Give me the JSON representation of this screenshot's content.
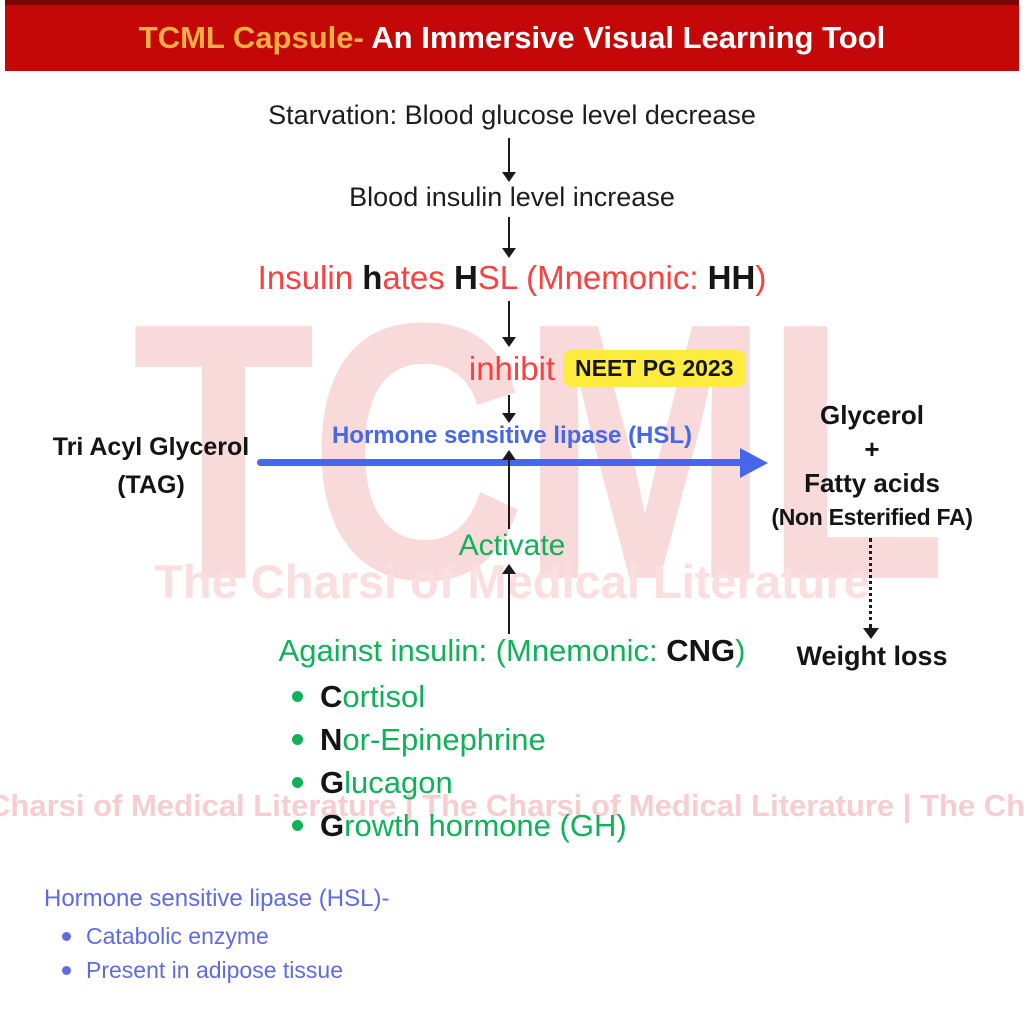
{
  "header": {
    "brand": "TCML Capsule-",
    "title": " An Immersive Visual Learning Tool"
  },
  "flow": {
    "step1": "Starvation: Blood glucose level decrease",
    "step2": "Blood insulin level increase",
    "mnemonic": [
      {
        "text": "Insulin "
      },
      {
        "text": "h"
      },
      {
        "text": "ates "
      },
      {
        "text": "H"
      },
      {
        "text": "SL (Mnemonic: "
      },
      {
        "text": "HH"
      },
      {
        "text": ")"
      }
    ],
    "inhibit": "inhibit",
    "badge": "NEET PG 2023",
    "enzyme": "Hormone sensitive lipase (HSL)",
    "substrate": [
      "Tri Acyl Glycerol",
      "(TAG)"
    ],
    "products": [
      "Glycerol",
      "+",
      "Fatty acids",
      "(Non Esterified FA)"
    ],
    "weight_loss": "Weight loss",
    "activate": "Activate",
    "against": [
      {
        "text": "Against insulin: (Mnemonic: "
      },
      {
        "text": "CNG"
      },
      {
        "text": ")"
      }
    ],
    "hormones": [
      {
        "initial": "C",
        "rest": "ortisol"
      },
      {
        "initial": "N",
        "rest": "or-Epinephrine"
      },
      {
        "initial": "G",
        "rest": "lucagon"
      },
      {
        "initial": "G",
        "rest": "rowth hormone (GH)"
      }
    ]
  },
  "footnote": {
    "title": "Hormone sensitive lipase (HSL)-",
    "bullets": [
      "Catabolic enzyme",
      "Present in adipose tissue"
    ]
  },
  "watermarks": {
    "big": "TCML",
    "middle": "The Charsi of Medical Literature",
    "bottom": "Charsi of Medical Literature | The Charsi of Medical Literature | The Charsi of Medica"
  },
  "colors": {
    "header_bg": "#c40707",
    "header_top_strip": "#7e0405",
    "brand_gold": "#f2ae45",
    "ink": "#1d1d1f",
    "red_text": "#fb4040",
    "green_text": "#10b259",
    "blue_accent": "#4767ea",
    "footnote_blue": "#5e6be2",
    "badge_yellow": "#fdec3e",
    "watermark_pink": "#f8dada"
  }
}
